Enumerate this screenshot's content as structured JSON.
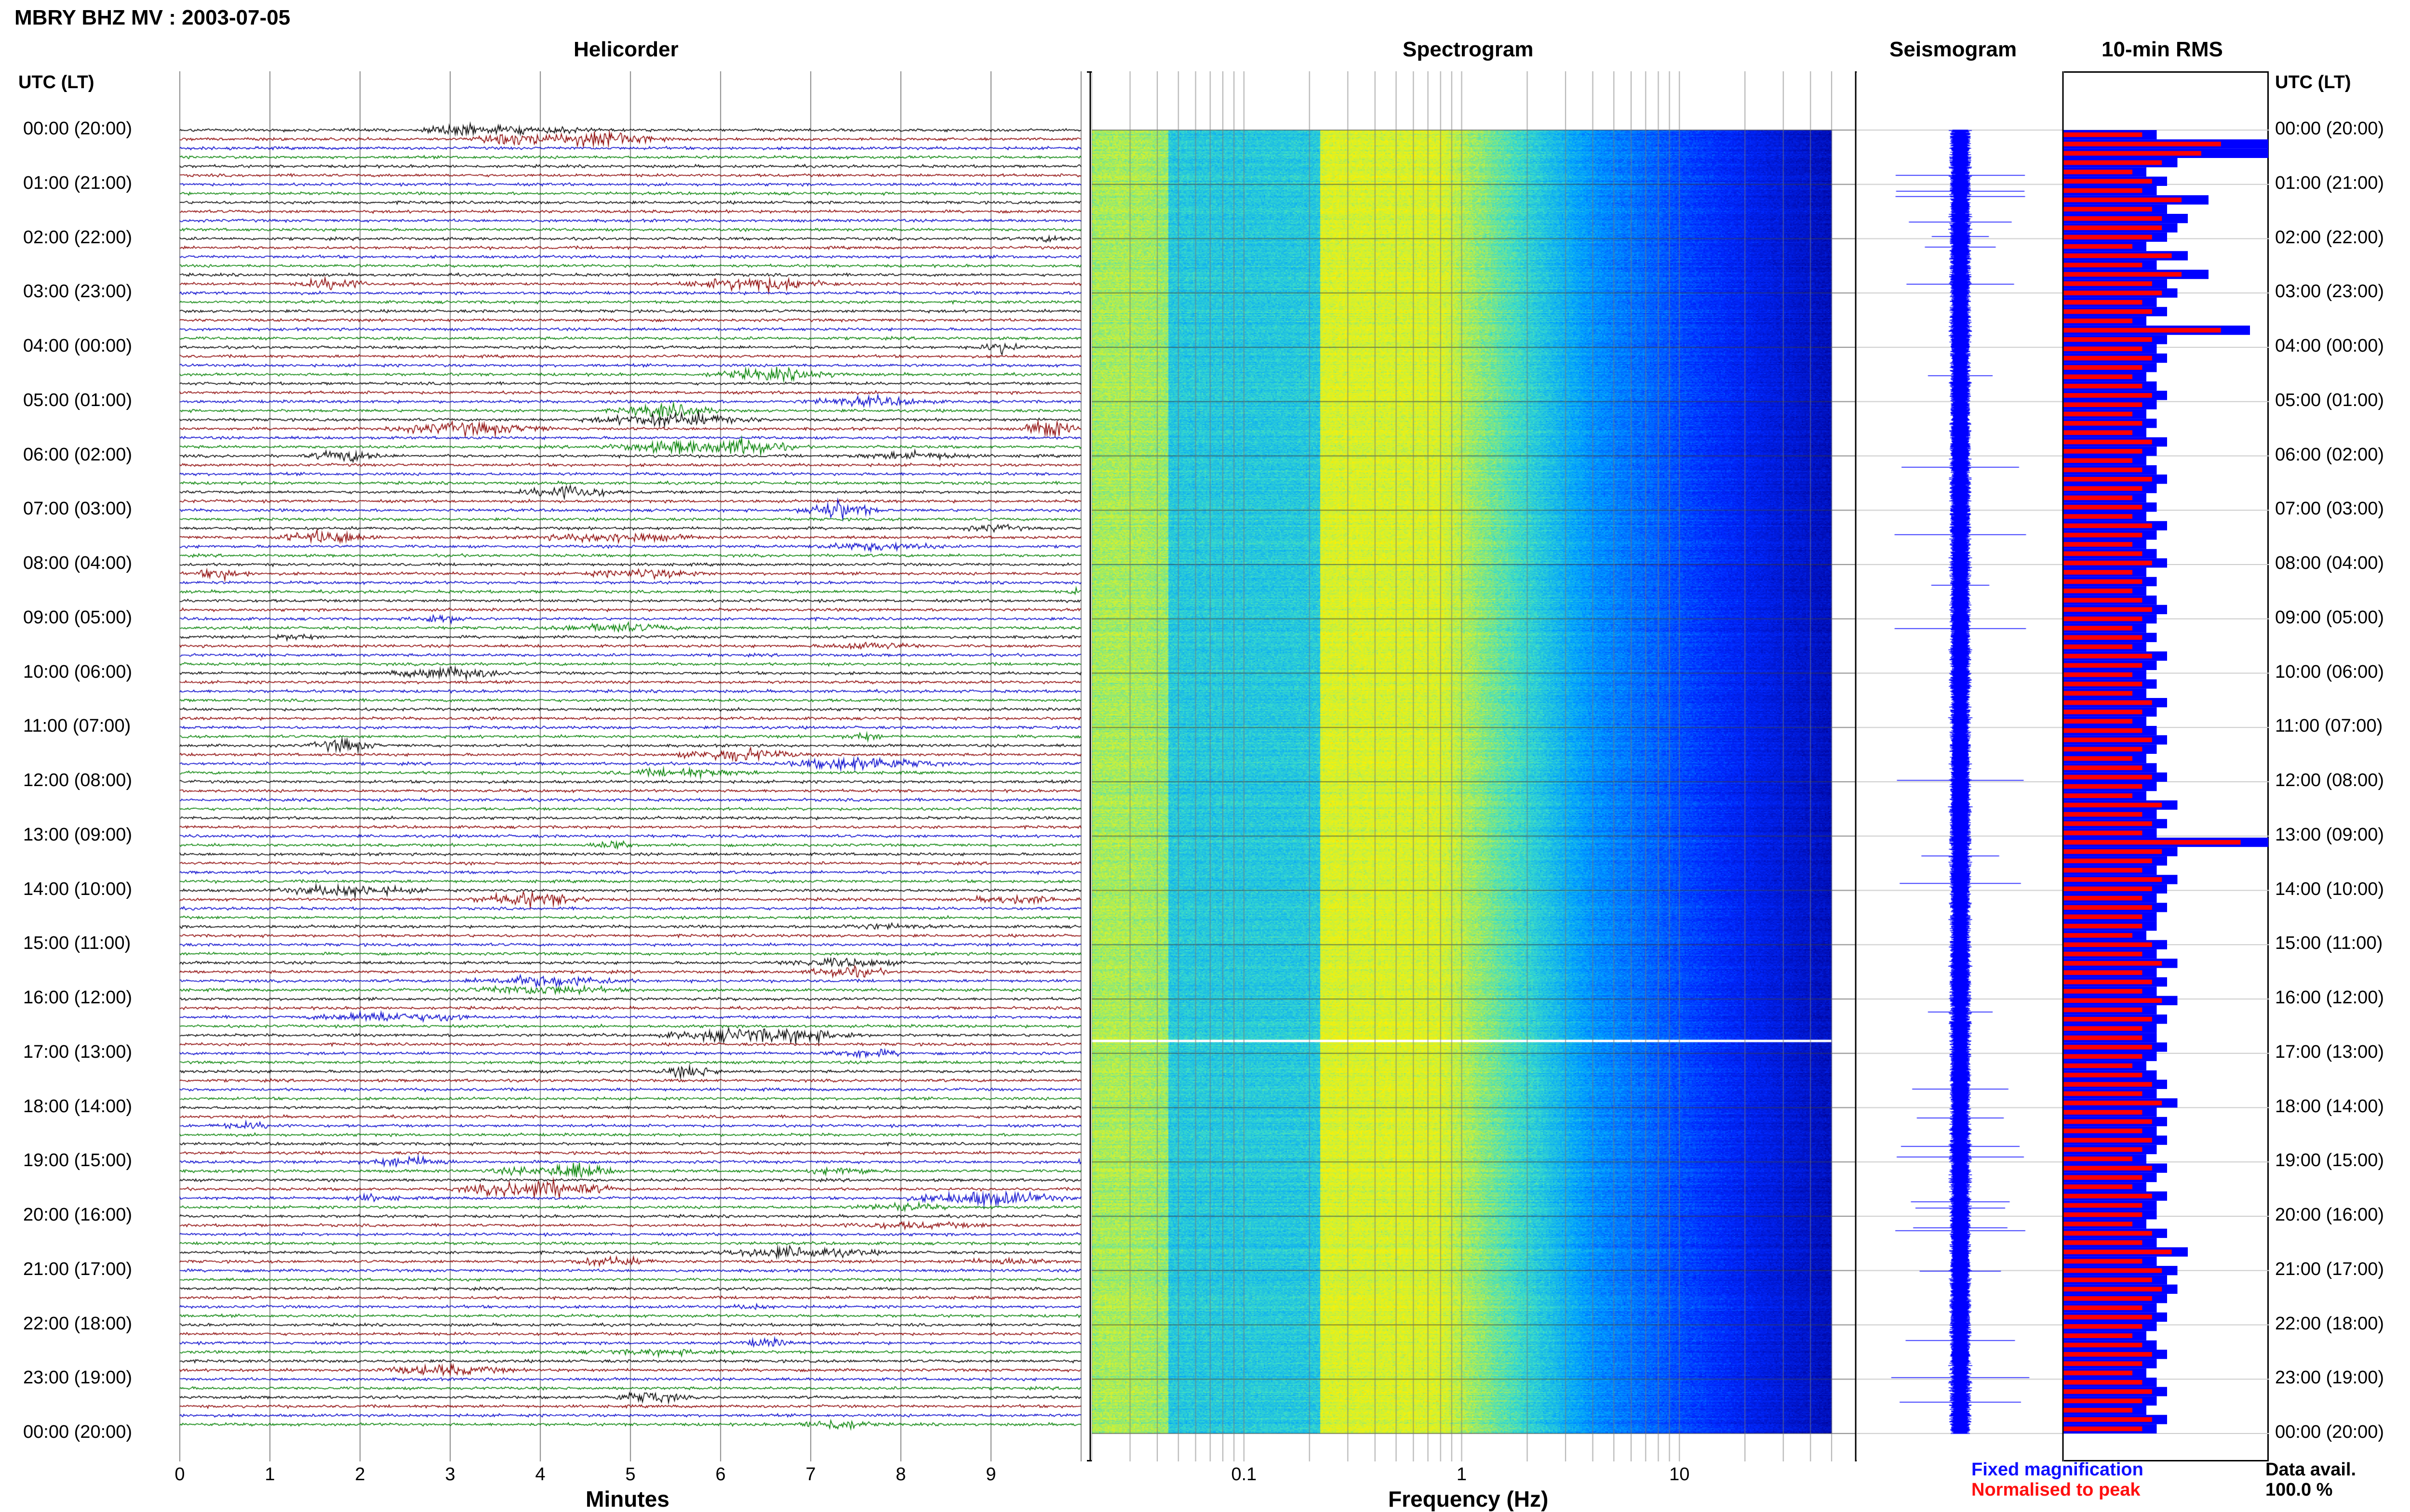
{
  "header": {
    "title": "MBRY BHZ MV : 2003-07-05",
    "left_axis_label": "UTC (LT)",
    "right_axis_label": "UTC (LT)"
  },
  "panels": {
    "helicorder": {
      "title": "Helicorder",
      "xlabel": "Minutes",
      "ticks": [
        "0",
        "1",
        "2",
        "3",
        "4",
        "5",
        "6",
        "7",
        "8",
        "9"
      ]
    },
    "spectrogram": {
      "title": "Spectrogram",
      "xlabel": "Frequency (Hz)",
      "ticks": [
        "0.1",
        "1",
        "10"
      ]
    },
    "seismogram": {
      "title": "Seismogram"
    },
    "rms": {
      "title": "10-min RMS"
    }
  },
  "legend": {
    "fixed": "Fixed magnification",
    "normalised": "Normalised to peak",
    "avail_label": "Data avail.",
    "avail_value": "100.0 %"
  },
  "colors": {
    "blue": "#0000ff",
    "red": "#ff0000",
    "trace_cycle": [
      "#000000",
      "#8b0000",
      "#0000cc",
      "#008000"
    ],
    "legend_fixed": "#1010ff",
    "legend_normalised": "#ff1010"
  },
  "chart_data": {
    "type": "helicorder",
    "title": "MBRY BHZ MV : 2003-07-05",
    "time_labels": [
      "00:00 (20:00)",
      "01:00 (21:00)",
      "02:00 (22:00)",
      "03:00 (23:00)",
      "04:00 (00:00)",
      "05:00 (01:00)",
      "06:00 (02:00)",
      "07:00 (03:00)",
      "08:00 (04:00)",
      "09:00 (05:00)",
      "10:00 (06:00)",
      "11:00 (07:00)",
      "12:00 (08:00)",
      "13:00 (09:00)",
      "14:00 (10:00)",
      "15:00 (11:00)",
      "16:00 (12:00)",
      "17:00 (13:00)",
      "18:00 (14:00)",
      "19:00 (15:00)",
      "20:00 (16:00)",
      "21:00 (17:00)",
      "22:00 (18:00)",
      "23:00 (19:00)",
      "00:00 (20:00)"
    ],
    "helicorder": {
      "xlabel": "Minutes",
      "xlim": [
        0,
        10
      ],
      "traces_per_hour": 6,
      "hours": 24
    },
    "spectrogram": {
      "xlabel": "Frequency (Hz)",
      "xscale": "log",
      "xlim": [
        0.02,
        50
      ],
      "ticks": [
        0.1,
        1,
        10
      ]
    },
    "rms_10min": {
      "series": [
        {
          "name": "Fixed magnification",
          "color": "#0000ff",
          "values": [
            0.45,
            1.3,
            1.0,
            0.55,
            0.4,
            0.5,
            0.45,
            0.7,
            0.5,
            0.6,
            0.55,
            0.5,
            0.4,
            0.6,
            0.45,
            0.7,
            0.5,
            0.55,
            0.45,
            0.5,
            0.4,
            0.9,
            0.5,
            0.45,
            0.5,
            0.45,
            0.4,
            0.45,
            0.5,
            0.45,
            0.4,
            0.45,
            0.4,
            0.5,
            0.45,
            0.4,
            0.45,
            0.5,
            0.45,
            0.4,
            0.45,
            0.4,
            0.5,
            0.45,
            0.4,
            0.45,
            0.5,
            0.4,
            0.45,
            0.4,
            0.45,
            0.5,
            0.45,
            0.4,
            0.45,
            0.4,
            0.5,
            0.45,
            0.4,
            0.45,
            0.4,
            0.5,
            0.45,
            0.4,
            0.45,
            0.5,
            0.45,
            0.4,
            0.45,
            0.5,
            0.45,
            0.4,
            0.55,
            0.45,
            0.5,
            0.45,
            1.0,
            0.55,
            0.5,
            0.45,
            0.55,
            0.5,
            0.45,
            0.5,
            0.45,
            0.45,
            0.4,
            0.5,
            0.45,
            0.55,
            0.45,
            0.5,
            0.45,
            0.55,
            0.45,
            0.5,
            0.45,
            0.45,
            0.5,
            0.45,
            0.4,
            0.45,
            0.5,
            0.45,
            0.55,
            0.45,
            0.5,
            0.45,
            0.5,
            0.45,
            0.4,
            0.5,
            0.45,
            0.4,
            0.5,
            0.45,
            0.45,
            0.4,
            0.5,
            0.45,
            0.6,
            0.45,
            0.55,
            0.5,
            0.55,
            0.5,
            0.45,
            0.5,
            0.45,
            0.4,
            0.45,
            0.5,
            0.45,
            0.4,
            0.45,
            0.5,
            0.45,
            0.4,
            0.5,
            0.45
          ]
        },
        {
          "name": "Normalised to peak",
          "color": "#ff0000",
          "values": [
            0.4,
            0.8,
            0.7,
            0.5,
            0.35,
            0.45,
            0.4,
            0.6,
            0.45,
            0.5,
            0.5,
            0.45,
            0.35,
            0.55,
            0.4,
            0.6,
            0.45,
            0.5,
            0.4,
            0.45,
            0.35,
            0.8,
            0.45,
            0.4,
            0.45,
            0.4,
            0.35,
            0.4,
            0.45,
            0.4,
            0.35,
            0.4,
            0.35,
            0.45,
            0.4,
            0.35,
            0.4,
            0.45,
            0.4,
            0.35,
            0.4,
            0.35,
            0.45,
            0.4,
            0.35,
            0.4,
            0.45,
            0.35,
            0.4,
            0.35,
            0.4,
            0.45,
            0.4,
            0.35,
            0.4,
            0.35,
            0.45,
            0.4,
            0.35,
            0.4,
            0.35,
            0.45,
            0.4,
            0.35,
            0.4,
            0.45,
            0.4,
            0.35,
            0.4,
            0.45,
            0.4,
            0.35,
            0.5,
            0.4,
            0.45,
            0.4,
            0.9,
            0.5,
            0.45,
            0.4,
            0.5,
            0.45,
            0.4,
            0.45,
            0.4,
            0.4,
            0.35,
            0.45,
            0.4,
            0.5,
            0.4,
            0.45,
            0.4,
            0.5,
            0.4,
            0.45,
            0.4,
            0.4,
            0.45,
            0.4,
            0.35,
            0.4,
            0.45,
            0.4,
            0.5,
            0.4,
            0.45,
            0.4,
            0.45,
            0.4,
            0.35,
            0.45,
            0.4,
            0.35,
            0.45,
            0.4,
            0.4,
            0.35,
            0.45,
            0.4,
            0.55,
            0.4,
            0.5,
            0.45,
            0.5,
            0.45,
            0.4,
            0.45,
            0.4,
            0.35,
            0.4,
            0.45,
            0.4,
            0.35,
            0.4,
            0.45,
            0.4,
            0.35,
            0.45,
            0.4
          ]
        }
      ]
    }
  }
}
